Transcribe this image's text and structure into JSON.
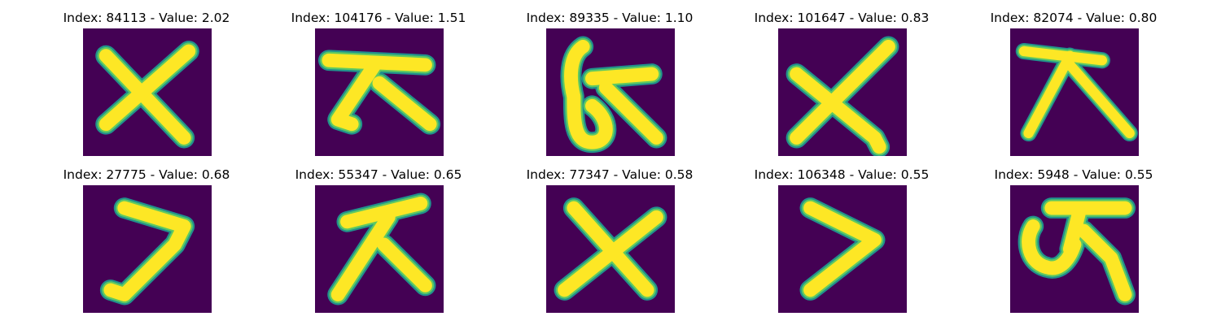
{
  "colors": {
    "background": "#440154",
    "stroke_core": "#fde725",
    "stroke_mid": "#5ec962",
    "stroke_edge": "#21918c"
  },
  "panels": [
    {
      "index": "84113",
      "value": "2.02",
      "title": "Index: 84113 - Value: 2.02",
      "glyph": "x-cross-glyph"
    },
    {
      "index": "104176",
      "value": "1.51",
      "title": "Index: 104176 - Value: 1.51",
      "glyph": "bar-wedge-glyph"
    },
    {
      "index": "89335",
      "value": "1.10",
      "title": "Index: 89335 - Value: 1.10",
      "glyph": "loop-bar-glyph"
    },
    {
      "index": "101647",
      "value": "0.83",
      "title": "Index: 101647 - Value: 0.83",
      "glyph": "x-cross-glyph"
    },
    {
      "index": "82074",
      "value": "0.80",
      "title": "Index: 82074 - Value: 0.80",
      "glyph": "bar-wedge-glyph"
    },
    {
      "index": "27775",
      "value": "0.68",
      "title": "Index: 27775 - Value: 0.68",
      "glyph": "chevron-glyph"
    },
    {
      "index": "55347",
      "value": "0.65",
      "title": "Index: 55347 - Value: 0.65",
      "glyph": "bar-wedge-glyph"
    },
    {
      "index": "77347",
      "value": "0.58",
      "title": "Index: 77347 - Value: 0.58",
      "glyph": "x-cross-glyph"
    },
    {
      "index": "106348",
      "value": "0.55",
      "title": "Index: 106348 - Value: 0.55",
      "glyph": "chevron-glyph"
    },
    {
      "index": "5948",
      "value": "0.55",
      "title": "Index: 5948 - Value: 0.55",
      "glyph": "hook-bar-glyph"
    }
  ]
}
